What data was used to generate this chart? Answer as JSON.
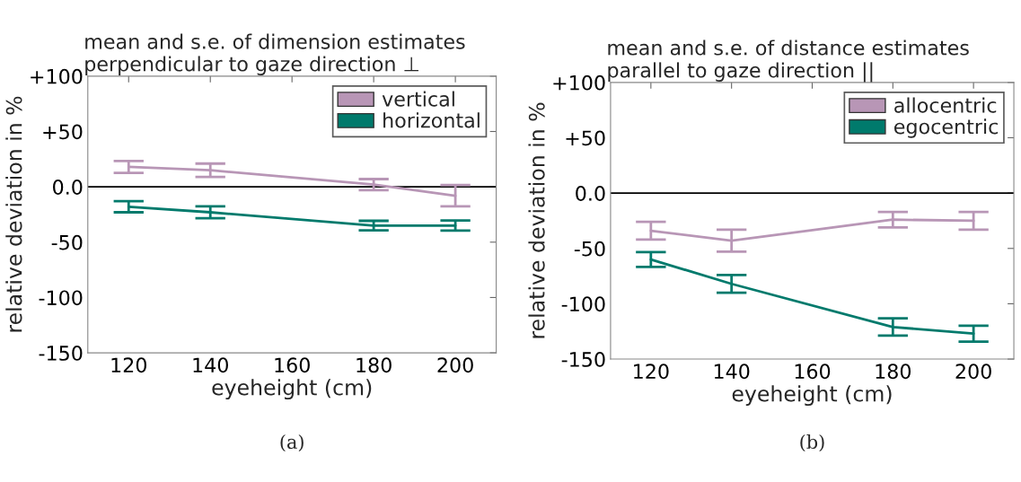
{
  "chart_data": [
    {
      "type": "line",
      "title": "mean and s.e. of dimension estimates\nperpendicular to gaze direction ⊥",
      "xlabel": "eyeheight (cm)",
      "ylabel": "relative deviation in %",
      "x": [
        120,
        140,
        180,
        200
      ],
      "series": [
        {
          "name": "vertical",
          "color": "#b896b6",
          "values": [
            18,
            15,
            2,
            -8
          ],
          "errors": [
            5.4,
            6,
            5,
            9.6
          ]
        },
        {
          "name": "horizontal",
          "color": "#007a6c",
          "values": [
            -18,
            -23,
            -35,
            -35
          ],
          "errors": [
            5,
            5.4,
            4.3,
            4.6
          ]
        }
      ],
      "xlim": [
        110,
        210
      ],
      "xticks": [
        120,
        140,
        160,
        180,
        200
      ],
      "ylim": [
        -150,
        100
      ],
      "yticks": [
        {
          "value": 100,
          "label": "+100"
        },
        {
          "value": 50,
          "label": "+50"
        },
        {
          "value": 0,
          "label": "0.0"
        },
        -50,
        -100,
        -150
      ],
      "ref_lines": [
        {
          "axis": "y",
          "value": 0,
          "color": "#000000"
        }
      ],
      "grid": false,
      "legend": "top right",
      "marker": "none",
      "line_style": "solid",
      "annotations": [
        "(a)"
      ]
    },
    {
      "type": "line",
      "title": "mean and s.e. of distance estimates\nparallel to gaze direction ||",
      "xlabel": "eyeheight (cm)",
      "ylabel": "relative deviation in %",
      "x": [
        120,
        140,
        180,
        200
      ],
      "series": [
        {
          "name": "allocentric",
          "color": "#b896b6",
          "values": [
            -34,
            -43,
            -24,
            -25
          ],
          "errors": [
            8,
            10,
            7,
            8
          ]
        },
        {
          "name": "egocentric",
          "color": "#007a6c",
          "values": [
            -60,
            -82,
            -121,
            -127
          ],
          "errors": [
            6.7,
            8,
            7.8,
            7.2
          ]
        }
      ],
      "xlim": [
        110,
        210
      ],
      "xticks": [
        120,
        140,
        160,
        180,
        200
      ],
      "ylim": [
        -150,
        100
      ],
      "yticks": [
        {
          "value": 100,
          "label": "+100"
        },
        {
          "value": 50,
          "label": "+50"
        },
        {
          "value": 0,
          "label": "0.0"
        },
        -50,
        -100,
        -150
      ],
      "ref_lines": [
        {
          "axis": "y",
          "value": 0,
          "color": "#000000"
        }
      ],
      "grid": false,
      "legend": "top right",
      "marker": "none",
      "line_style": "solid",
      "annotations": [
        "(b)"
      ]
    }
  ]
}
